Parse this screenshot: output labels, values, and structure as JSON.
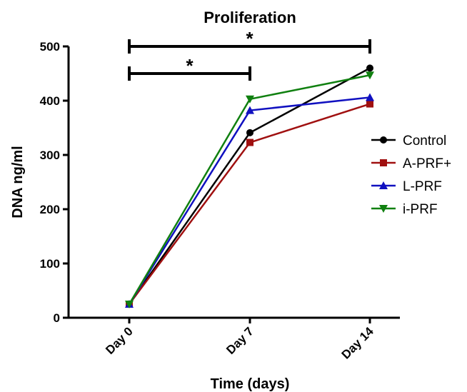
{
  "chart_data": {
    "type": "line",
    "title": "Proliferation",
    "xlabel": "Time (days)",
    "ylabel": "DNA ng/ml",
    "categories": [
      "Day 0",
      "Day 7",
      "Day 14"
    ],
    "ylim": [
      0,
      500
    ],
    "yticks": [
      0,
      100,
      200,
      300,
      400,
      500
    ],
    "grid": false,
    "legend_position": "right",
    "series": [
      {
        "name": "Control",
        "values": [
          25,
          341,
          460
        ],
        "color": "#000000",
        "marker": "circle"
      },
      {
        "name": "A-PRF+",
        "values": [
          25,
          323,
          394
        ],
        "color": "#a01010",
        "marker": "square"
      },
      {
        "name": "L-PRF",
        "values": [
          25,
          382,
          406
        ],
        "color": "#1010c0",
        "marker": "triangle-up"
      },
      {
        "name": "i-PRF",
        "values": [
          25,
          403,
          447
        ],
        "color": "#108010",
        "marker": "triangle-down"
      }
    ],
    "significance": [
      {
        "from": "Day 0",
        "to": "Day 14",
        "y": 500,
        "label": "*"
      },
      {
        "from": "Day 0",
        "to": "Day 7",
        "y": 450,
        "label": "*"
      }
    ]
  }
}
